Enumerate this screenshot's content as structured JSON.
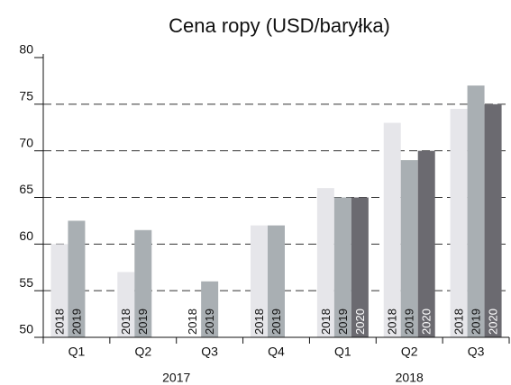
{
  "chart_data": {
    "type": "bar",
    "title": "Cena ropy (USD/baryłka)",
    "groups": [
      {
        "name": "2017",
        "categories": [
          "Q1",
          "Q2",
          "Q3",
          "Q4"
        ]
      },
      {
        "name": "2018",
        "categories": [
          "Q1",
          "Q2",
          "Q3"
        ]
      }
    ],
    "series": [
      {
        "name": "2018",
        "color": "#e6e6ea",
        "values": [
          60,
          57,
          50,
          62,
          66,
          73,
          74.5
        ]
      },
      {
        "name": "2019",
        "color": "#a9afb3",
        "values": [
          62.5,
          61.5,
          56,
          62,
          65,
          69,
          77
        ]
      },
      {
        "name": "2020",
        "color": "#6b6a70",
        "values": [
          null,
          null,
          null,
          null,
          65,
          70,
          75
        ]
      }
    ],
    "ylim": [
      50,
      80
    ],
    "yticks": [
      50,
      55,
      60,
      65,
      70,
      75,
      80
    ],
    "grid": true
  }
}
